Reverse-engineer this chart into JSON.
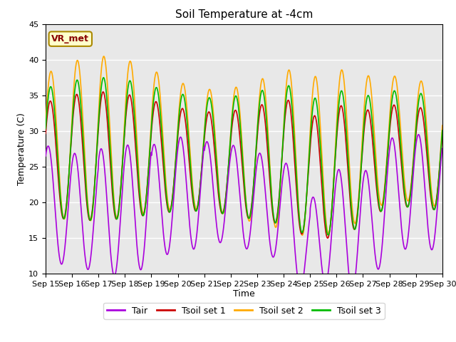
{
  "title": "Soil Temperature at -4cm",
  "xlabel": "Time",
  "ylabel": "Temperature (C)",
  "ylim": [
    10,
    45
  ],
  "xlim_days": [
    0,
    15
  ],
  "background_color": "#ffffff",
  "plot_bg_color": "#e8e8e8",
  "grid_color": "#ffffff",
  "series_colors": {
    "Tair": "#aa00dd",
    "Tsoil1": "#cc0000",
    "Tsoil2": "#ffaa00",
    "Tsoil3": "#00bb00"
  },
  "legend_labels": [
    "Tair",
    "Tsoil set 1",
    "Tsoil set 2",
    "Tsoil set 3"
  ],
  "annotation_text": "VR_met",
  "annotation_bg": "#ffffcc",
  "annotation_border": "#aa8800",
  "annotation_text_color": "#880000",
  "tick_labels": [
    "Sep 15",
    "Sep 16",
    "Sep 17",
    "Sep 18",
    "Sep 19",
    "Sep 20",
    "Sep 21",
    "Sep 22",
    "Sep 23",
    "Sep 24",
    "Sep 25",
    "Sep 26",
    "Sep 27",
    "Sep 28",
    "Sep 29",
    "Sep 30"
  ],
  "title_fontsize": 11,
  "axis_fontsize": 9,
  "tick_fontsize": 8,
  "legend_fontsize": 9,
  "line_width": 1.2
}
